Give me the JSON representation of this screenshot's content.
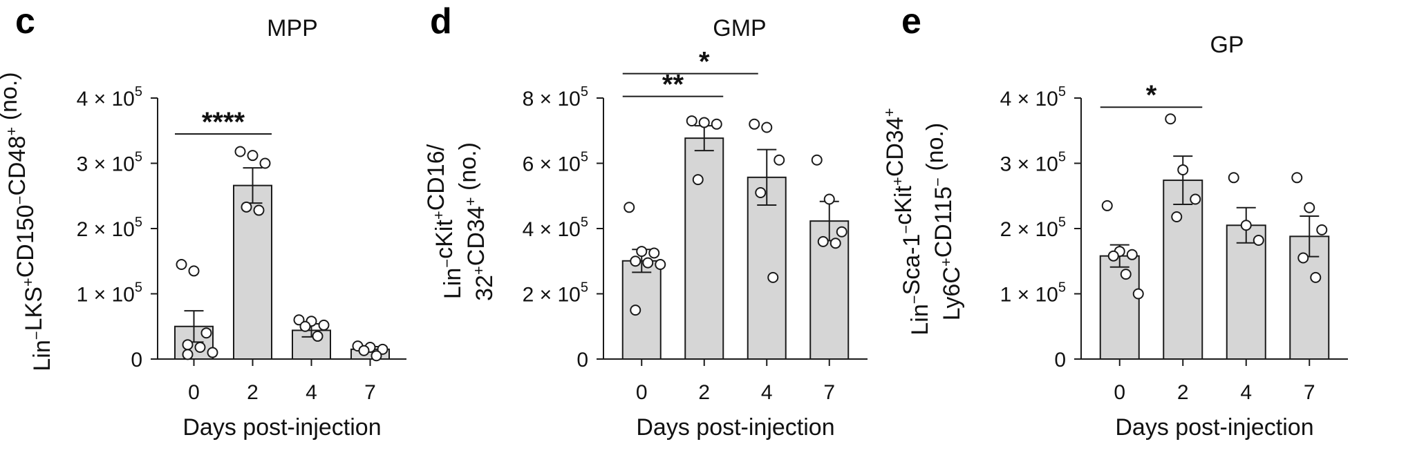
{
  "figure": {
    "panels": [
      {
        "letter": "c",
        "title": "MPP"
      },
      {
        "letter": "d",
        "title": "GMP"
      },
      {
        "letter": "e",
        "title": "GP"
      }
    ]
  },
  "chart_data": [
    {
      "panel": "c",
      "type": "bar",
      "title": "MPP",
      "ylabel_lines": [
        [
          {
            "t": "Lin"
          },
          {
            "t": "−",
            "s": "sup"
          },
          {
            "t": "LKS"
          },
          {
            "t": "+",
            "s": "sup"
          },
          {
            "t": "CD150"
          },
          {
            "t": "−",
            "s": "sup"
          },
          {
            "t": "CD48"
          },
          {
            "t": "+",
            "s": "sup"
          },
          {
            "t": " (no.)"
          }
        ]
      ],
      "xlabel": "Days post-injection",
      "categories": [
        "0",
        "2",
        "4",
        "7"
      ],
      "values": [
        50000,
        266000,
        44000,
        15000
      ],
      "errors": [
        24000,
        27000,
        10000,
        4000
      ],
      "points": [
        [
          145000,
          135000,
          40000,
          22000,
          18000,
          10000,
          7000
        ],
        [
          318000,
          312000,
          300000,
          233000,
          228000
        ],
        [
          60000,
          58000,
          52000,
          50000,
          35000
        ],
        [
          20000,
          18000,
          15000,
          13000,
          5000
        ]
      ],
      "ylim": [
        0,
        400000
      ],
      "yticks": [
        {
          "v": 0,
          "m": "0",
          "e": ""
        },
        {
          "v": 100000,
          "m": "1 × 10",
          "e": "5"
        },
        {
          "v": 200000,
          "m": "2 × 10",
          "e": "5"
        },
        {
          "v": 300000,
          "m": "3 × 10",
          "e": "5"
        },
        {
          "v": 400000,
          "m": "4 × 10",
          "e": "5"
        }
      ],
      "significance": [
        {
          "from": 0,
          "to": 1,
          "label": "****",
          "y": 345000
        }
      ]
    },
    {
      "panel": "d",
      "type": "bar",
      "title": "GMP",
      "ylabel_lines": [
        [
          {
            "t": "Lin"
          },
          {
            "t": "−",
            "s": "sup"
          },
          {
            "t": "cKit"
          },
          {
            "t": "+",
            "s": "sup"
          },
          {
            "t": "CD16/"
          }
        ],
        [
          {
            "t": "32"
          },
          {
            "t": "+",
            "s": "sup"
          },
          {
            "t": "CD34"
          },
          {
            "t": "+",
            "s": "sup"
          },
          {
            "t": " (no.)"
          }
        ]
      ],
      "xlabel": "Days post-injection",
      "categories": [
        "0",
        "2",
        "4",
        "7"
      ],
      "values": [
        301000,
        677000,
        557000,
        423000
      ],
      "errors": [
        35000,
        38000,
        85000,
        60000
      ],
      "points": [
        [
          465000,
          330000,
          325000,
          300000,
          295000,
          290000,
          150000
        ],
        [
          730000,
          725000,
          720000,
          550000
        ],
        [
          720000,
          710000,
          610000,
          510000,
          250000
        ],
        [
          610000,
          490000,
          390000,
          360000,
          355000
        ]
      ],
      "ylim": [
        0,
        800000
      ],
      "yticks": [
        {
          "v": 0,
          "m": "0",
          "e": ""
        },
        {
          "v": 200000,
          "m": "2 × 10",
          "e": "5"
        },
        {
          "v": 400000,
          "m": "4 × 10",
          "e": "5"
        },
        {
          "v": 600000,
          "m": "6 × 10",
          "e": "5"
        },
        {
          "v": 800000,
          "m": "8 × 10",
          "e": "5"
        }
      ],
      "significance": [
        {
          "from": 0,
          "to": 1,
          "label": "**",
          "y": 805000
        },
        {
          "from": 0,
          "to": 2,
          "label": "*",
          "y": 875000
        }
      ]
    },
    {
      "panel": "e",
      "type": "bar",
      "title": "GP",
      "ylabel_lines": [
        [
          {
            "t": "Lin"
          },
          {
            "t": "−",
            "s": "sup"
          },
          {
            "t": "Sca-1"
          },
          {
            "t": "−",
            "s": "sup"
          },
          {
            "t": "cKit"
          },
          {
            "t": "+",
            "s": "sup"
          },
          {
            "t": "CD34"
          },
          {
            "t": "+",
            "s": "sup"
          }
        ],
        [
          {
            "t": "Ly6C"
          },
          {
            "t": "+",
            "s": "sup"
          },
          {
            "t": "CD115"
          },
          {
            "t": "−",
            "s": "sup"
          },
          {
            "t": " (no.)"
          }
        ]
      ],
      "xlabel": "Days post-injection",
      "categories": [
        "0",
        "2",
        "4",
        "7"
      ],
      "values": [
        158000,
        274000,
        205000,
        188000
      ],
      "errors": [
        17000,
        37000,
        27000,
        31000
      ],
      "points": [
        [
          235000,
          165000,
          160000,
          158000,
          130000,
          100000
        ],
        [
          368000,
          290000,
          245000,
          218000
        ],
        [
          278000,
          205000,
          182000
        ],
        [
          278000,
          232000,
          198000,
          155000,
          125000
        ]
      ],
      "ylim": [
        0,
        400000
      ],
      "yticks": [
        {
          "v": 0,
          "m": "0",
          "e": ""
        },
        {
          "v": 100000,
          "m": "1 × 10",
          "e": "5"
        },
        {
          "v": 200000,
          "m": "2 × 10",
          "e": "5"
        },
        {
          "v": 300000,
          "m": "3 × 10",
          "e": "5"
        },
        {
          "v": 400000,
          "m": "4 × 10",
          "e": "5"
        }
      ],
      "significance": [
        {
          "from": 0,
          "to": 1,
          "label": "*",
          "y": 386000
        }
      ]
    }
  ],
  "colors": {
    "bar_fill": "#d6d6d6",
    "stroke": "#1a1a1a",
    "point_fill": "#ffffff"
  }
}
